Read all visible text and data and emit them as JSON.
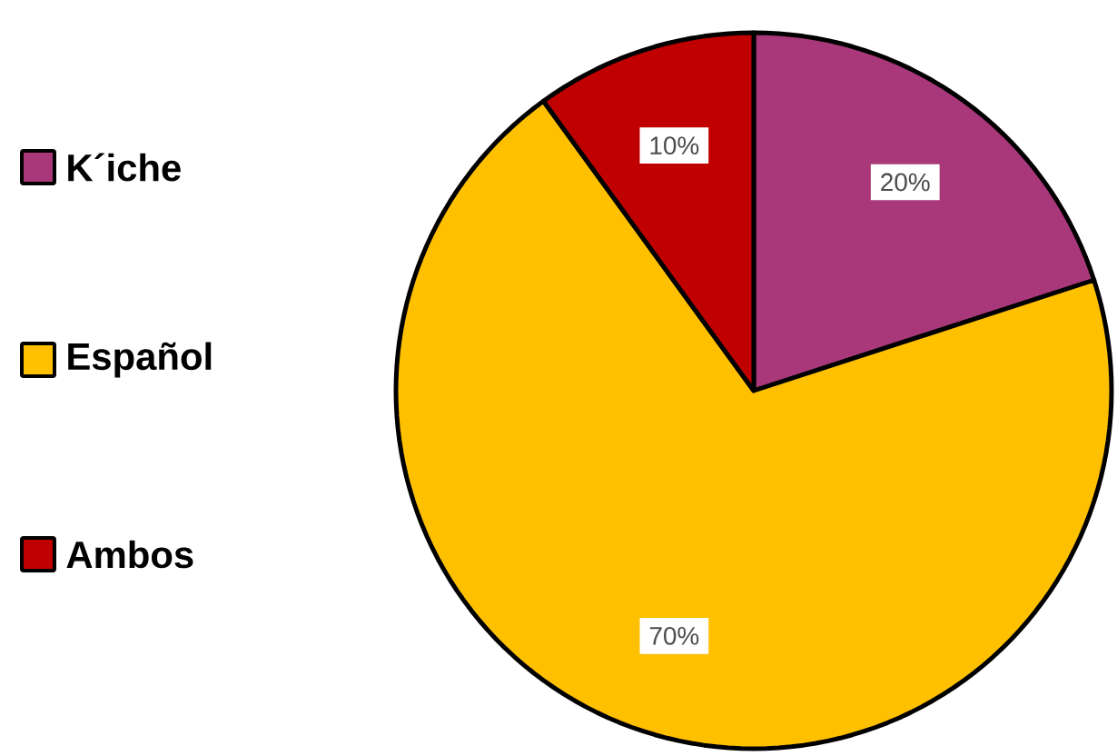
{
  "chart_data": {
    "type": "pie",
    "categories": [
      "K´iche",
      "Español",
      "Ambos"
    ],
    "values": [
      20,
      70,
      10
    ],
    "colors": [
      "#a8387a",
      "#ffc000",
      "#c00000"
    ],
    "value_labels": [
      "20%",
      "70%",
      "10%"
    ],
    "legend": "left"
  }
}
